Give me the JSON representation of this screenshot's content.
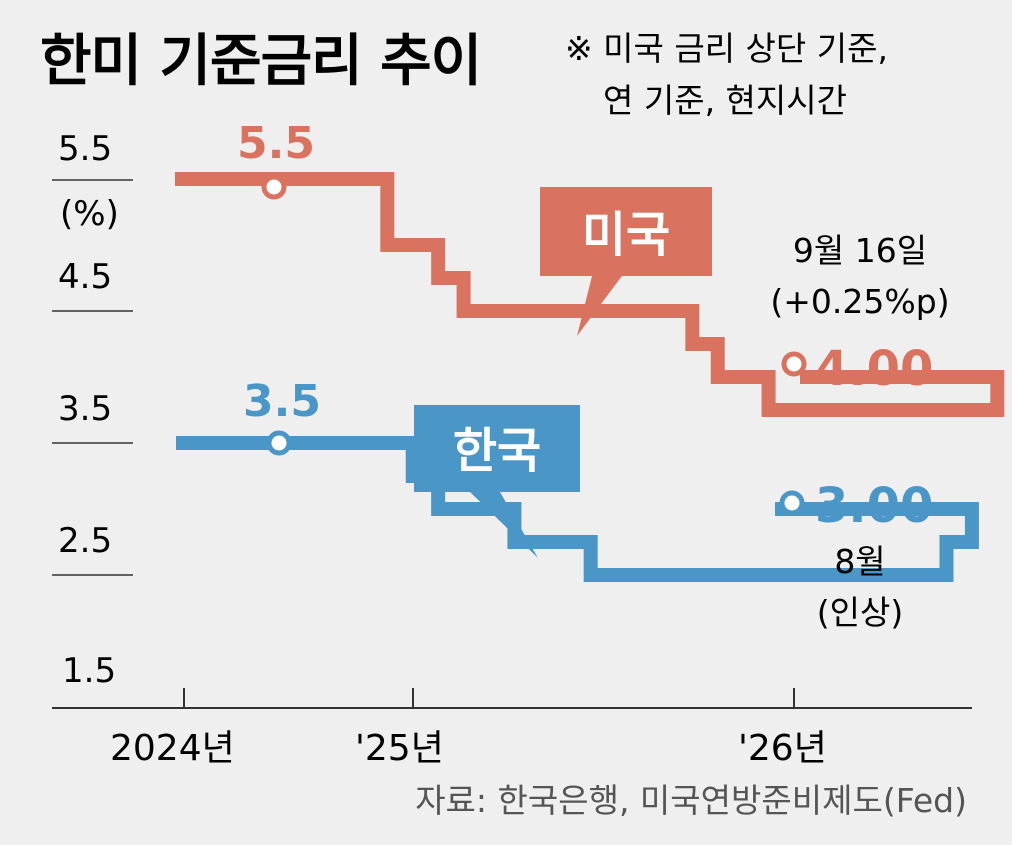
{
  "title": "한미 기준금리 추이",
  "note_line1": "※ 미국 금리 상단 기준,",
  "note_line2": "연 기준, 현지시간",
  "source": "자료: 한국은행, 미국연방준비제도(Fed)",
  "colors": {
    "us": "#d9735f",
    "korea": "#4a97c7",
    "axis": "#333333",
    "background": "#efefef"
  },
  "chart_data": {
    "type": "line",
    "step": true,
    "yunit": "(%)",
    "ylim": [
      1.5,
      5.5
    ],
    "yticks": [
      "5.5",
      "4.5",
      "3.5",
      "2.5",
      "1.5"
    ],
    "xticks": [
      "2024년",
      "'25년",
      "'26년"
    ],
    "series": [
      {
        "name": "미국",
        "start_label": "5.5",
        "end_label": "4.00",
        "annotation": [
          "9월 16일",
          "(+0.25%p)"
        ],
        "points": [
          [
            "2024-01",
            5.5
          ],
          [
            "2024-09",
            5.0
          ],
          [
            "2024-11",
            4.75
          ],
          [
            "2024-12",
            4.5
          ],
          [
            "2025-09",
            4.25
          ],
          [
            "2025-10",
            4.0
          ],
          [
            "2025-12",
            3.75
          ],
          [
            "2026-09",
            4.0
          ]
        ]
      },
      {
        "name": "한국",
        "start_label": "3.5",
        "end_label": "3.00",
        "annotation": [
          "8월",
          "(인상)"
        ],
        "points": [
          [
            "2024-01",
            3.5
          ],
          [
            "2024-10",
            3.25
          ],
          [
            "2024-11",
            3.0
          ],
          [
            "2025-02",
            2.75
          ],
          [
            "2025-05",
            2.5
          ],
          [
            "2026-07",
            2.75
          ],
          [
            "2026-08",
            3.0
          ]
        ]
      }
    ]
  }
}
